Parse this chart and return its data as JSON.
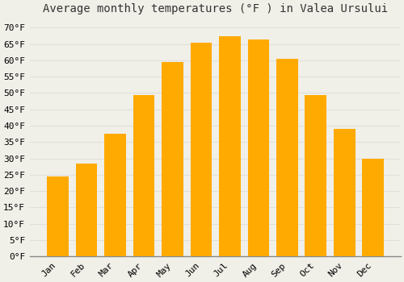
{
  "title": "Average monthly temperatures (°F ) in Valea Ursului",
  "months": [
    "Jan",
    "Feb",
    "Mar",
    "Apr",
    "May",
    "Jun",
    "Jul",
    "Aug",
    "Sep",
    "Oct",
    "Nov",
    "Dec"
  ],
  "values": [
    24.5,
    28.5,
    37.5,
    49.5,
    59.5,
    65.5,
    67.5,
    66.5,
    60.5,
    49.5,
    39.0,
    30.0
  ],
  "bar_color": "#FFAA00",
  "background_color": "#F0EFE8",
  "grid_color": "#E0DFDA",
  "ylim": [
    0,
    72
  ],
  "yticks": [
    0,
    5,
    10,
    15,
    20,
    25,
    30,
    35,
    40,
    45,
    50,
    55,
    60,
    65,
    70
  ],
  "title_fontsize": 10,
  "tick_fontsize": 8
}
